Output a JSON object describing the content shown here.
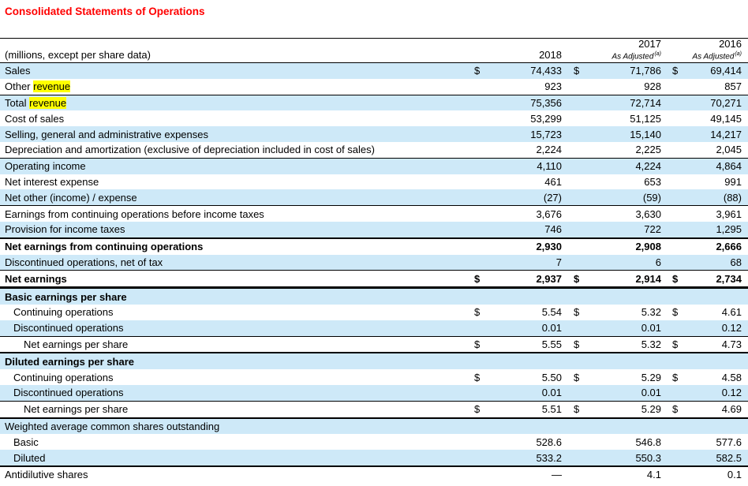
{
  "page": {
    "title": "Consolidated Statements of Operations"
  },
  "colors": {
    "accent_red": "#ff0000",
    "row_blue": "#cee9f8",
    "highlight_yellow": "#ffff00"
  },
  "table": {
    "unit_note": "(millions, except per share data)",
    "find_highlight_term": "revenue",
    "columns": [
      {
        "year": "2018",
        "note": "",
        "note_sup": ""
      },
      {
        "year": "2017",
        "note": "As Adjusted",
        "note_sup": "(a)"
      },
      {
        "year": "2016",
        "note": "As Adjusted",
        "note_sup": "(a)"
      }
    ],
    "rows": [
      {
        "label": "Sales",
        "highlight": false,
        "bold": false,
        "indent": 0,
        "dollar": true,
        "rule_top": "none",
        "values": [
          "74,433",
          "71,786",
          "69,414"
        ]
      },
      {
        "label": "Other revenue",
        "highlight": true,
        "bold": false,
        "indent": 0,
        "dollar": false,
        "rule_top": "none",
        "values": [
          "923",
          "928",
          "857"
        ]
      },
      {
        "label": "Total revenue",
        "highlight": true,
        "bold": false,
        "indent": 0,
        "dollar": false,
        "rule_top": "thin",
        "values": [
          "75,356",
          "72,714",
          "70,271"
        ]
      },
      {
        "label": "Cost of sales",
        "highlight": false,
        "bold": false,
        "indent": 0,
        "dollar": false,
        "rule_top": "none",
        "values": [
          "53,299",
          "51,125",
          "49,145"
        ]
      },
      {
        "label": "Selling, general and administrative expenses",
        "highlight": false,
        "bold": false,
        "indent": 0,
        "dollar": false,
        "rule_top": "none",
        "values": [
          "15,723",
          "15,140",
          "14,217"
        ]
      },
      {
        "label": "Depreciation and amortization (exclusive of depreciation included in cost of sales)",
        "highlight": false,
        "bold": false,
        "indent": 0,
        "dollar": false,
        "rule_top": "none",
        "values": [
          "2,224",
          "2,225",
          "2,045"
        ]
      },
      {
        "label": "Operating income",
        "highlight": false,
        "bold": false,
        "indent": 0,
        "dollar": false,
        "rule_top": "thin",
        "values": [
          "4,110",
          "4,224",
          "4,864"
        ]
      },
      {
        "label": "Net interest expense",
        "highlight": false,
        "bold": false,
        "indent": 0,
        "dollar": false,
        "rule_top": "none",
        "values": [
          "461",
          "653",
          "991"
        ]
      },
      {
        "label": "Net other (income) / expense",
        "highlight": false,
        "bold": false,
        "indent": 0,
        "dollar": false,
        "rule_top": "none",
        "values": [
          "(27)",
          "(59)",
          "(88)"
        ]
      },
      {
        "label": "Earnings from continuing operations before income taxes",
        "highlight": false,
        "bold": false,
        "indent": 0,
        "dollar": false,
        "rule_top": "thin",
        "values": [
          "3,676",
          "3,630",
          "3,961"
        ]
      },
      {
        "label": "Provision for income taxes",
        "highlight": false,
        "bold": false,
        "indent": 0,
        "dollar": false,
        "rule_top": "none",
        "values": [
          "746",
          "722",
          "1,295"
        ]
      },
      {
        "label": "Net earnings from continuing operations",
        "highlight": false,
        "bold": true,
        "indent": 0,
        "dollar": false,
        "rule_top": "medium",
        "values": [
          "2,930",
          "2,908",
          "2,666"
        ]
      },
      {
        "label": "Discontinued operations, net of tax",
        "highlight": false,
        "bold": false,
        "indent": 0,
        "dollar": false,
        "rule_top": "none",
        "values": [
          "7",
          "6",
          "68"
        ]
      },
      {
        "label": "Net earnings",
        "highlight": false,
        "bold": true,
        "indent": 0,
        "dollar": true,
        "rule_top": "thin",
        "values": [
          "2,937",
          "2,914",
          "2,734"
        ]
      },
      {
        "label": "Basic earnings per share",
        "highlight": false,
        "bold": true,
        "indent": 0,
        "dollar": false,
        "rule_top": "thick",
        "values": [
          "",
          "",
          ""
        ]
      },
      {
        "label": "Continuing operations",
        "highlight": false,
        "bold": false,
        "indent": 1,
        "dollar": true,
        "rule_top": "none",
        "values": [
          "5.54",
          "5.32",
          "4.61"
        ]
      },
      {
        "label": "Discontinued operations",
        "highlight": false,
        "bold": false,
        "indent": 1,
        "dollar": false,
        "rule_top": "none",
        "values": [
          "0.01",
          "0.01",
          "0.12"
        ]
      },
      {
        "label": "Net earnings per share",
        "highlight": false,
        "bold": false,
        "indent": 2,
        "dollar": true,
        "rule_top": "thin",
        "values": [
          "5.55",
          "5.32",
          "4.73"
        ]
      },
      {
        "label": "Diluted earnings per share",
        "highlight": false,
        "bold": true,
        "indent": 0,
        "dollar": false,
        "rule_top": "medium",
        "values": [
          "",
          "",
          ""
        ]
      },
      {
        "label": "Continuing operations",
        "highlight": false,
        "bold": false,
        "indent": 1,
        "dollar": true,
        "rule_top": "none",
        "values": [
          "5.50",
          "5.29",
          "4.58"
        ]
      },
      {
        "label": "Discontinued operations",
        "highlight": false,
        "bold": false,
        "indent": 1,
        "dollar": false,
        "rule_top": "none",
        "values": [
          "0.01",
          "0.01",
          "0.12"
        ]
      },
      {
        "label": "Net earnings per share",
        "highlight": false,
        "bold": false,
        "indent": 2,
        "dollar": true,
        "rule_top": "thin",
        "values": [
          "5.51",
          "5.29",
          "4.69"
        ]
      },
      {
        "label": "Weighted average common shares outstanding",
        "highlight": false,
        "bold": false,
        "indent": 0,
        "dollar": false,
        "rule_top": "medium",
        "values": [
          "",
          "",
          ""
        ]
      },
      {
        "label": "Basic",
        "highlight": false,
        "bold": false,
        "indent": 1,
        "dollar": false,
        "rule_top": "none",
        "values": [
          "528.6",
          "546.8",
          "577.6"
        ]
      },
      {
        "label": "Diluted",
        "highlight": false,
        "bold": false,
        "indent": 1,
        "dollar": false,
        "rule_top": "none",
        "values": [
          "533.2",
          "550.3",
          "582.5"
        ]
      },
      {
        "label": "Antidilutive shares",
        "highlight": false,
        "bold": false,
        "indent": 0,
        "dollar": false,
        "rule_top": "medium",
        "values": [
          "—",
          "4.1",
          "0.1"
        ]
      }
    ]
  }
}
